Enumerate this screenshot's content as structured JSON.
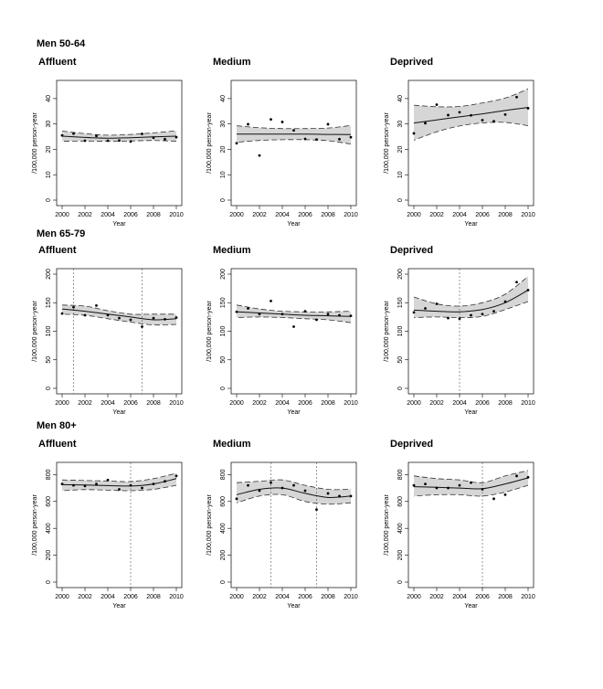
{
  "groups": [
    {
      "title": "Men 50-64"
    },
    {
      "title": "Men 65-79"
    },
    {
      "title": "Men 80+"
    }
  ],
  "chart_data": [
    {
      "type": "scatter",
      "group": "Men 50-64",
      "title": "Affluent",
      "xlabel": "Year",
      "ylabel": "/100,000 person-year",
      "xlim": [
        2000,
        2010
      ],
      "ylim": [
        0,
        45
      ],
      "yticks": [
        0,
        10,
        20,
        30,
        40
      ],
      "xticks": [
        2000,
        2002,
        2004,
        2006,
        2008,
        2010
      ],
      "points": {
        "x": [
          2000,
          2001,
          2002,
          2003,
          2004,
          2005,
          2006,
          2007,
          2008,
          2009,
          2010
        ],
        "y": [
          25.5,
          26.2,
          23.4,
          25.3,
          23.4,
          23.5,
          23.1,
          26.1,
          24.6,
          24.0,
          24.8
        ]
      },
      "fit": {
        "x": [
          2000,
          2002,
          2004,
          2006,
          2008,
          2010
        ],
        "y": [
          25.2,
          24.7,
          24.4,
          24.6,
          24.9,
          25.2
        ]
      },
      "ci_lower": [
        23.2,
        23.3,
        23.2,
        23.3,
        23.5,
        23.2
      ],
      "ci_upper": [
        27.2,
        26.2,
        25.6,
        25.9,
        26.5,
        27.3
      ],
      "breakpoints": []
    },
    {
      "type": "scatter",
      "group": "Men 50-64",
      "title": "Medium",
      "xlabel": "Year",
      "ylabel": "/100,000 person-year",
      "xlim": [
        2000,
        2010
      ],
      "ylim": [
        0,
        45
      ],
      "yticks": [
        0,
        10,
        20,
        30,
        40
      ],
      "xticks": [
        2000,
        2002,
        2004,
        2006,
        2008,
        2010
      ],
      "points": {
        "x": [
          2000,
          2001,
          2002,
          2003,
          2004,
          2005,
          2006,
          2007,
          2008,
          2009,
          2010
        ],
        "y": [
          22.4,
          29.9,
          17.6,
          31.8,
          30.8,
          27.5,
          24.1,
          23.9,
          29.9,
          24.0,
          24.8
        ]
      },
      "fit": {
        "x": [
          2000,
          2002,
          2004,
          2006,
          2008,
          2010
        ],
        "y": [
          26.0,
          26.0,
          26.0,
          26.0,
          25.9,
          25.8
        ]
      },
      "ci_lower": [
        22.8,
        23.5,
        23.8,
        23.8,
        23.4,
        22.1
      ],
      "ci_upper": [
        29.3,
        28.5,
        28.2,
        28.2,
        28.4,
        29.4
      ],
      "breakpoints": []
    },
    {
      "type": "scatter",
      "group": "Men 50-64",
      "title": "Deprived",
      "xlabel": "Year",
      "ylabel": "/100,000 person-year",
      "xlim": [
        2000,
        2010
      ],
      "ylim": [
        0,
        45
      ],
      "yticks": [
        0,
        10,
        20,
        30,
        40
      ],
      "xticks": [
        2000,
        2002,
        2004,
        2006,
        2008,
        2010
      ],
      "points": {
        "x": [
          2000,
          2001,
          2002,
          2003,
          2004,
          2005,
          2006,
          2007,
          2008,
          2009,
          2010
        ],
        "y": [
          26.3,
          30.3,
          37.6,
          33.5,
          34.6,
          33.4,
          31.5,
          31.1,
          33.7,
          40.6,
          36.2
        ]
      },
      "fit": {
        "x": [
          2000,
          2002,
          2004,
          2006,
          2008,
          2010
        ],
        "y": [
          30.4,
          31.6,
          32.8,
          34.0,
          35.3,
          36.5
        ]
      },
      "ci_lower": [
        23.6,
        26.9,
        29.2,
        30.4,
        30.6,
        29.3
      ],
      "ci_upper": [
        37.4,
        36.8,
        36.9,
        38.3,
        40.2,
        43.8
      ],
      "breakpoints": []
    },
    {
      "type": "scatter",
      "group": "Men 65-79",
      "title": "Affluent",
      "xlabel": "Year",
      "ylabel": "/100,000 person-year",
      "xlim": [
        2000,
        2010
      ],
      "ylim": [
        0,
        200
      ],
      "yticks": [
        0,
        50,
        100,
        150,
        200
      ],
      "xticks": [
        2000,
        2002,
        2004,
        2006,
        2008,
        2010
      ],
      "points": {
        "x": [
          2000,
          2001,
          2002,
          2003,
          2004,
          2005,
          2006,
          2007,
          2008,
          2009,
          2010
        ],
        "y": [
          131,
          142,
          128,
          145,
          128,
          123,
          120,
          108,
          123,
          121,
          124
        ]
      },
      "fit": {
        "x": [
          2000,
          2002,
          2004,
          2006,
          2008,
          2010
        ],
        "y": [
          139,
          135,
          130,
          125,
          120,
          122
        ]
      },
      "ci_lower": [
        130,
        128,
        122,
        116,
        111,
        112
      ],
      "ci_upper": [
        146,
        144,
        136,
        130,
        130,
        130
      ],
      "breakpoints": [
        2001,
        2007
      ]
    },
    {
      "type": "scatter",
      "group": "Men 65-79",
      "title": "Medium",
      "xlabel": "Year",
      "ylabel": "/100,000 person-year",
      "xlim": [
        2000,
        2010
      ],
      "ylim": [
        0,
        200
      ],
      "yticks": [
        0,
        50,
        100,
        150,
        200
      ],
      "xticks": [
        2000,
        2002,
        2004,
        2006,
        2008,
        2010
      ],
      "points": {
        "x": [
          2000,
          2001,
          2002,
          2003,
          2004,
          2005,
          2006,
          2007,
          2008,
          2009,
          2010
        ],
        "y": [
          134,
          140,
          130,
          153,
          130,
          108,
          135,
          120,
          130,
          128,
          127
        ]
      },
      "fit": {
        "x": [
          2000,
          2002,
          2004,
          2006,
          2008,
          2010
        ],
        "y": [
          134,
          132,
          130,
          128,
          127,
          126
        ]
      },
      "ci_lower": [
        124,
        125,
        124,
        122,
        120,
        115
      ],
      "ci_upper": [
        146,
        139,
        135,
        134,
        134,
        135
      ],
      "breakpoints": []
    },
    {
      "type": "scatter",
      "group": "Men 65-79",
      "title": "Deprived",
      "xlabel": "Year",
      "ylabel": "/100,000 person-year",
      "xlim": [
        2000,
        2010
      ],
      "ylim": [
        0,
        200
      ],
      "yticks": [
        0,
        50,
        100,
        150,
        200
      ],
      "xticks": [
        2000,
        2002,
        2004,
        2006,
        2008,
        2010
      ],
      "points": {
        "x": [
          2000,
          2001,
          2002,
          2003,
          2004,
          2005,
          2006,
          2007,
          2008,
          2009,
          2010
        ],
        "y": [
          133,
          140,
          148,
          123,
          122,
          128,
          130,
          135,
          152,
          186,
          172
        ]
      },
      "fit": {
        "x": [
          2000,
          2002,
          2004,
          2006,
          2008,
          2010
        ],
        "y": [
          137,
          135,
          134,
          138,
          150,
          172
        ]
      },
      "ci_lower": [
        124,
        125,
        124,
        126,
        138,
        152
      ],
      "ci_upper": [
        160,
        148,
        144,
        150,
        165,
        196
      ],
      "breakpoints": [
        2004
      ]
    },
    {
      "type": "scatter",
      "group": "Men 80+",
      "title": "Affluent",
      "xlabel": "Year",
      "ylabel": "/100,000 person-year",
      "xlim": [
        2000,
        2010
      ],
      "ylim": [
        0,
        850
      ],
      "yticks": [
        0,
        200,
        400,
        600,
        800
      ],
      "xticks": [
        2000,
        2002,
        2004,
        2006,
        2008,
        2010
      ],
      "points": {
        "x": [
          2000,
          2001,
          2002,
          2003,
          2004,
          2005,
          2006,
          2007,
          2008,
          2009,
          2010
        ],
        "y": [
          730,
          720,
          715,
          730,
          760,
          690,
          720,
          700,
          730,
          750,
          790
        ]
      },
      "fit": {
        "x": [
          2000,
          2002,
          2004,
          2006,
          2008,
          2010
        ],
        "y": [
          725,
          722,
          718,
          715,
          730,
          770
        ]
      },
      "ci_lower": [
        680,
        688,
        684,
        680,
        690,
        720
      ],
      "ci_upper": [
        760,
        756,
        752,
        748,
        770,
        810
      ],
      "breakpoints": [
        2006
      ]
    },
    {
      "type": "scatter",
      "group": "Men 80+",
      "title": "Medium",
      "xlabel": "Year",
      "ylabel": "/100,000 person-year",
      "xlim": [
        2000,
        2010
      ],
      "ylim": [
        0,
        850
      ],
      "yticks": [
        0,
        200,
        400,
        600,
        800
      ],
      "xticks": [
        2000,
        2002,
        2004,
        2006,
        2008,
        2010
      ],
      "points": {
        "x": [
          2000,
          2001,
          2002,
          2003,
          2004,
          2005,
          2006,
          2007,
          2008,
          2009,
          2010
        ],
        "y": [
          620,
          720,
          680,
          740,
          700,
          720,
          680,
          540,
          660,
          640,
          640
        ]
      },
      "fit": {
        "x": [
          2000,
          2002,
          2004,
          2006,
          2008,
          2010
        ],
        "y": [
          650,
          690,
          700,
          660,
          630,
          640
        ]
      },
      "ci_lower": [
        590,
        640,
        650,
        600,
        580,
        590
      ],
      "ci_upper": [
        740,
        750,
        760,
        720,
        690,
        690
      ],
      "breakpoints": [
        2003,
        2007
      ]
    },
    {
      "type": "scatter",
      "group": "Men 80+",
      "title": "Deprived",
      "xlabel": "Year",
      "ylabel": "/100,000 person-year",
      "xlim": [
        2000,
        2010
      ],
      "ylim": [
        0,
        850
      ],
      "yticks": [
        0,
        200,
        400,
        600,
        800
      ],
      "xticks": [
        2000,
        2002,
        2004,
        2006,
        2008,
        2010
      ],
      "points": {
        "x": [
          2000,
          2001,
          2002,
          2003,
          2004,
          2005,
          2006,
          2007,
          2008,
          2009,
          2010
        ],
        "y": [
          720,
          730,
          700,
          700,
          720,
          740,
          690,
          620,
          650,
          790,
          780
        ]
      },
      "fit": {
        "x": [
          2000,
          2002,
          2004,
          2006,
          2008,
          2010
        ],
        "y": [
          710,
          705,
          700,
          695,
          730,
          775
        ]
      },
      "ci_lower": [
        640,
        650,
        650,
        640,
        670,
        720
      ],
      "ci_upper": [
        790,
        770,
        760,
        740,
        790,
        830
      ],
      "breakpoints": [
        2006
      ]
    }
  ]
}
